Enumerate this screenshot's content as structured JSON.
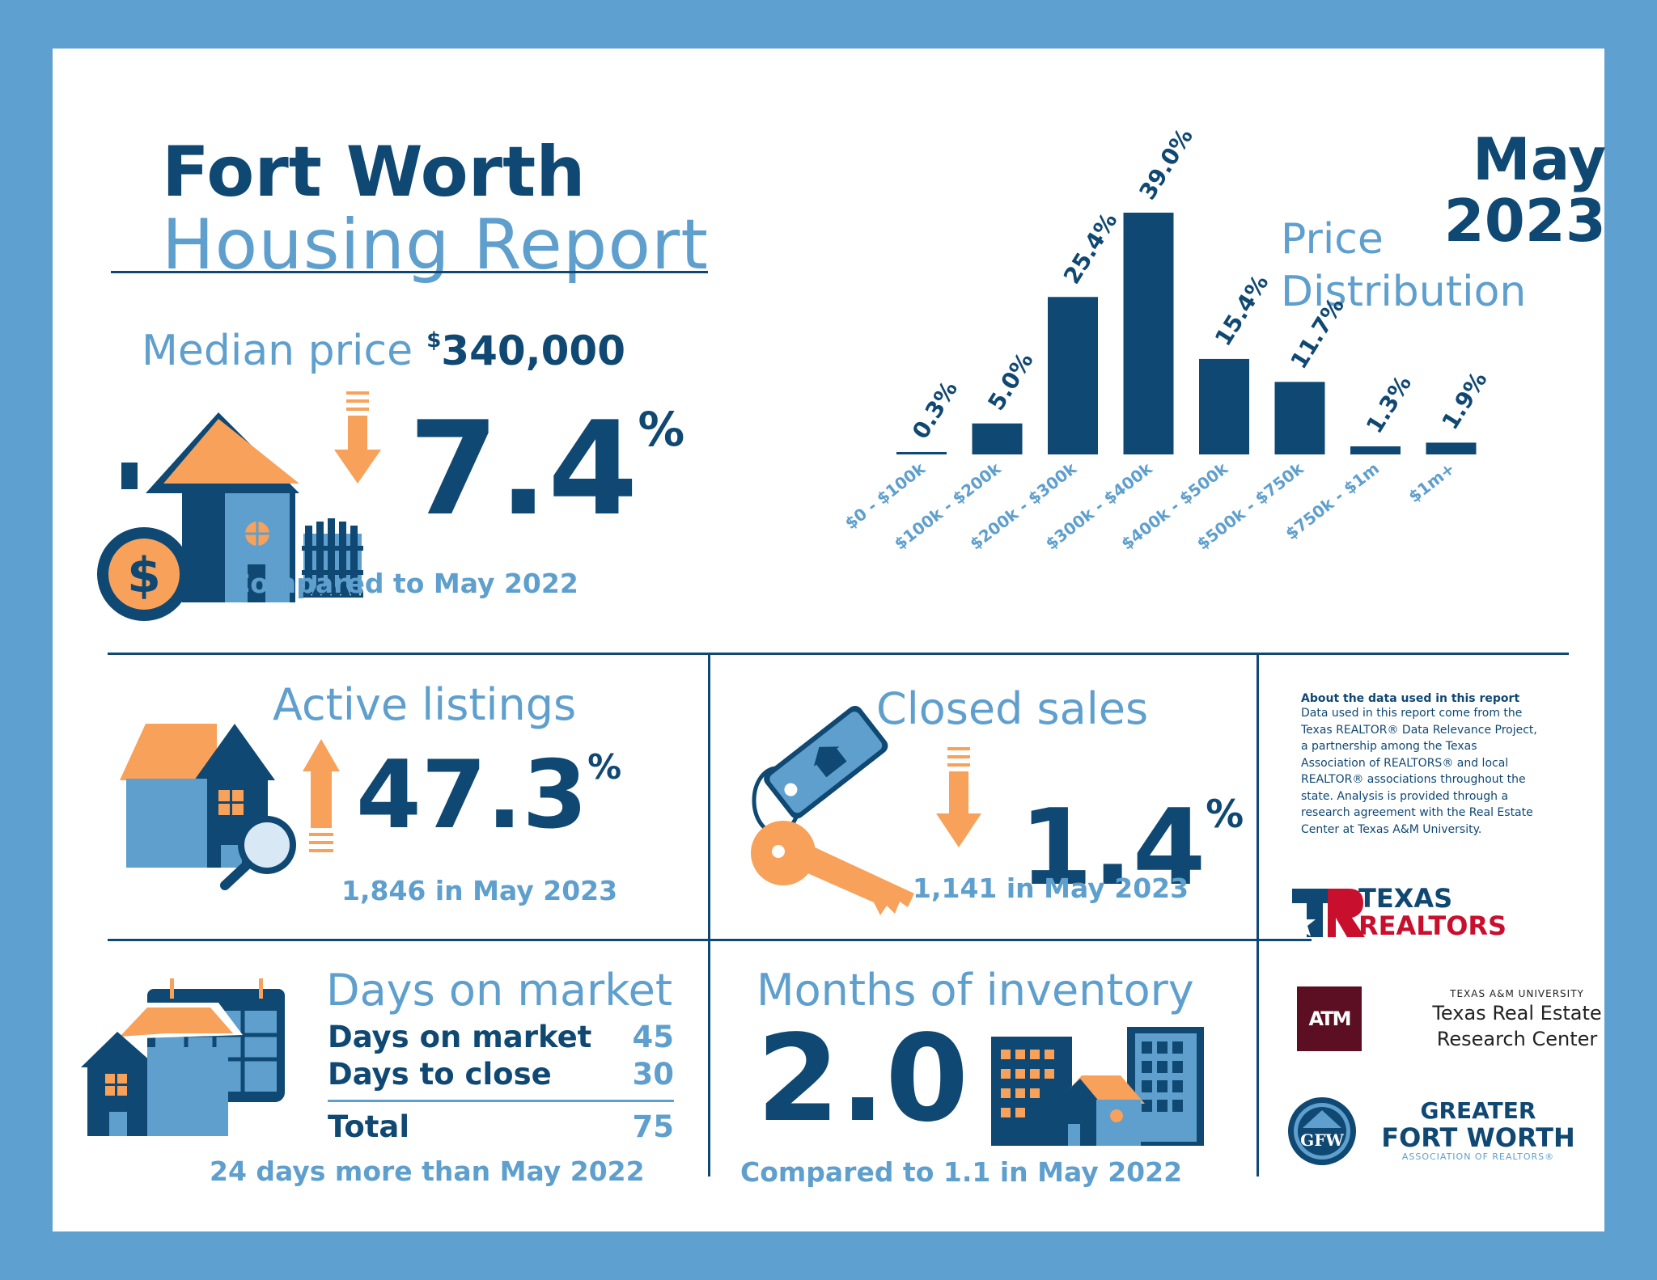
{
  "header": {
    "title_city": "Fort Worth",
    "title_sub": "Housing Report",
    "month": "May",
    "year": "2023",
    "dist_title_1": "Price",
    "dist_title_2": "Distribution"
  },
  "median": {
    "label": "Median price",
    "price_symbol": "$",
    "price": "340,000",
    "change": "7.4",
    "pct": "%",
    "direction": "down",
    "compare": "Compared to May 2022"
  },
  "active": {
    "title": "Active listings",
    "change": "47.3",
    "pct": "%",
    "direction": "up",
    "sub": "1,846 in May 2023"
  },
  "closed": {
    "title": "Closed sales",
    "change": "1.4",
    "pct": "%",
    "direction": "down",
    "sub": "1,141 in May 2023"
  },
  "dom": {
    "title": "Days on market",
    "rows": [
      {
        "label": "Days on market",
        "value": "45"
      },
      {
        "label": "Days to close",
        "value": "30"
      }
    ],
    "total_label": "Total",
    "total_value": "75",
    "sub": "24 days more than May 2022"
  },
  "inventory": {
    "title": "Months of inventory",
    "value": "2.0",
    "sub": "Compared to 1.1 in May 2022"
  },
  "about": {
    "heading": "About the data used in this report",
    "lines": [
      "Data used in this report come from the",
      "Texas REALTOR® Data Relevance Project,",
      "a partnership among the Texas",
      "Association of REALTORS® and local",
      "REALTOR® associations throughout the",
      "state. Analysis is provided through a",
      "research agreement with the Real Estate",
      "Center at Texas A&M University."
    ]
  },
  "logos": {
    "texas_realtors_1": "TEXAS",
    "texas_realtors_2": "REALTORS",
    "tamu_small": "TEXAS A&M UNIVERSITY",
    "tamu_line1": "Texas Real Estate",
    "tamu_line2": "Research Center",
    "tamu_mark": "ATM",
    "gfw_1": "GREATER",
    "gfw_2": "FORT WORTH",
    "gfw_3": "ASSOCIATION OF REALTORS®",
    "gfw_mark": "GFW"
  },
  "colors": {
    "navy": "#0f4872",
    "light_blue": "#5e9fcd",
    "orange": "#f7a15b",
    "border": "#5ea0cf",
    "maroon": "#5c0f22",
    "red": "#c8102e"
  },
  "chart_data": {
    "type": "bar",
    "categories": [
      "$0 - $100k",
      "$100k - $200k",
      "$200k - $300k",
      "$300k - $400k",
      "$400k - $500k",
      "$500k - $750k",
      "$750k - $1m",
      "$1m+"
    ],
    "values": [
      0.3,
      5.0,
      25.4,
      39.0,
      15.4,
      11.7,
      1.3,
      1.9
    ],
    "value_labels": [
      "0.3%",
      "5.0%",
      "25.4%",
      "39.0%",
      "15.4%",
      "11.7%",
      "1.3%",
      "1.9%"
    ],
    "title": "Price Distribution",
    "ylim": [
      0,
      39.0
    ]
  }
}
